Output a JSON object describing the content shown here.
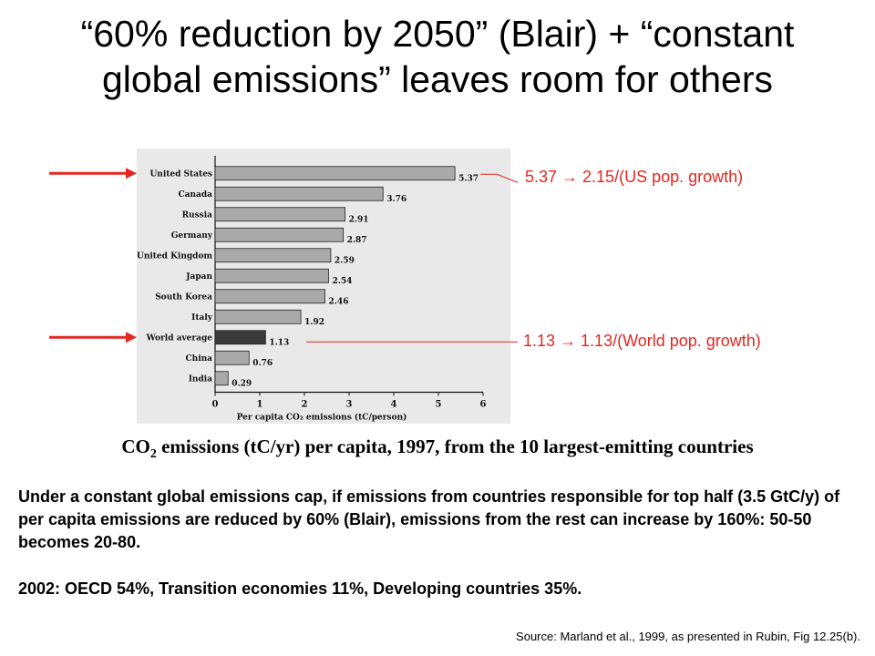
{
  "slide": {
    "title_line1": "“60% reduction by 2050” (Blair) + “constant",
    "title_line2": "global emissions” leaves room for others",
    "annotations": {
      "us": "5.37  →  2.15/(US pop. growth)",
      "world": "1.13  →  1.13/(World pop. growth)"
    },
    "caption_prefix": "CO",
    "caption_sub": "2",
    "caption_suffix": " emissions (tC/yr) per capita, 1997, from the 10 largest-emitting countries",
    "paragraph1": "Under a constant global emissions cap, if emissions from countries responsible for top half (3.5 GtC/y) of per capita emissions are reduced by 60% (Blair), emissions from the rest can increase by 160%: 50-50 becomes 20-80.",
    "paragraph2": "2002: OECD 54%, Transition economies 11%, Developing countries 35%.",
    "source": "Source: Marland et al., 1999, as presented in Rubin, Fig 12.25(b)."
  },
  "colors": {
    "accent_red": "#e4261f",
    "bar_fill": "#a9a9a9",
    "highlight_bar_fill": "#3a3a3a",
    "chart_background": "#e9e9e9"
  },
  "chart_data": {
    "type": "bar",
    "orientation": "horizontal",
    "categories": [
      "United States",
      "Canada",
      "Russia",
      "Germany",
      "United Kingdom",
      "Japan",
      "South Korea",
      "Italy",
      "World average",
      "China",
      "India"
    ],
    "values": [
      5.37,
      3.76,
      2.91,
      2.87,
      2.59,
      2.54,
      2.46,
      1.92,
      1.13,
      0.76,
      0.29
    ],
    "value_labels": [
      "5.37",
      "3.76",
      "2.91",
      "2.87",
      "2.59",
      "2.54",
      "2.46",
      "1.92",
      "1.13",
      "0.76",
      "0.29"
    ],
    "highlighted": [
      "World average"
    ],
    "arrow_markers": [
      "United States",
      "World average"
    ],
    "xlabel": "Per capita CO₂ emissions (tC/person)",
    "xlim": [
      0,
      6
    ],
    "xticks": [
      "0",
      "1",
      "2",
      "3",
      "4",
      "5",
      "6"
    ],
    "grid": false
  }
}
